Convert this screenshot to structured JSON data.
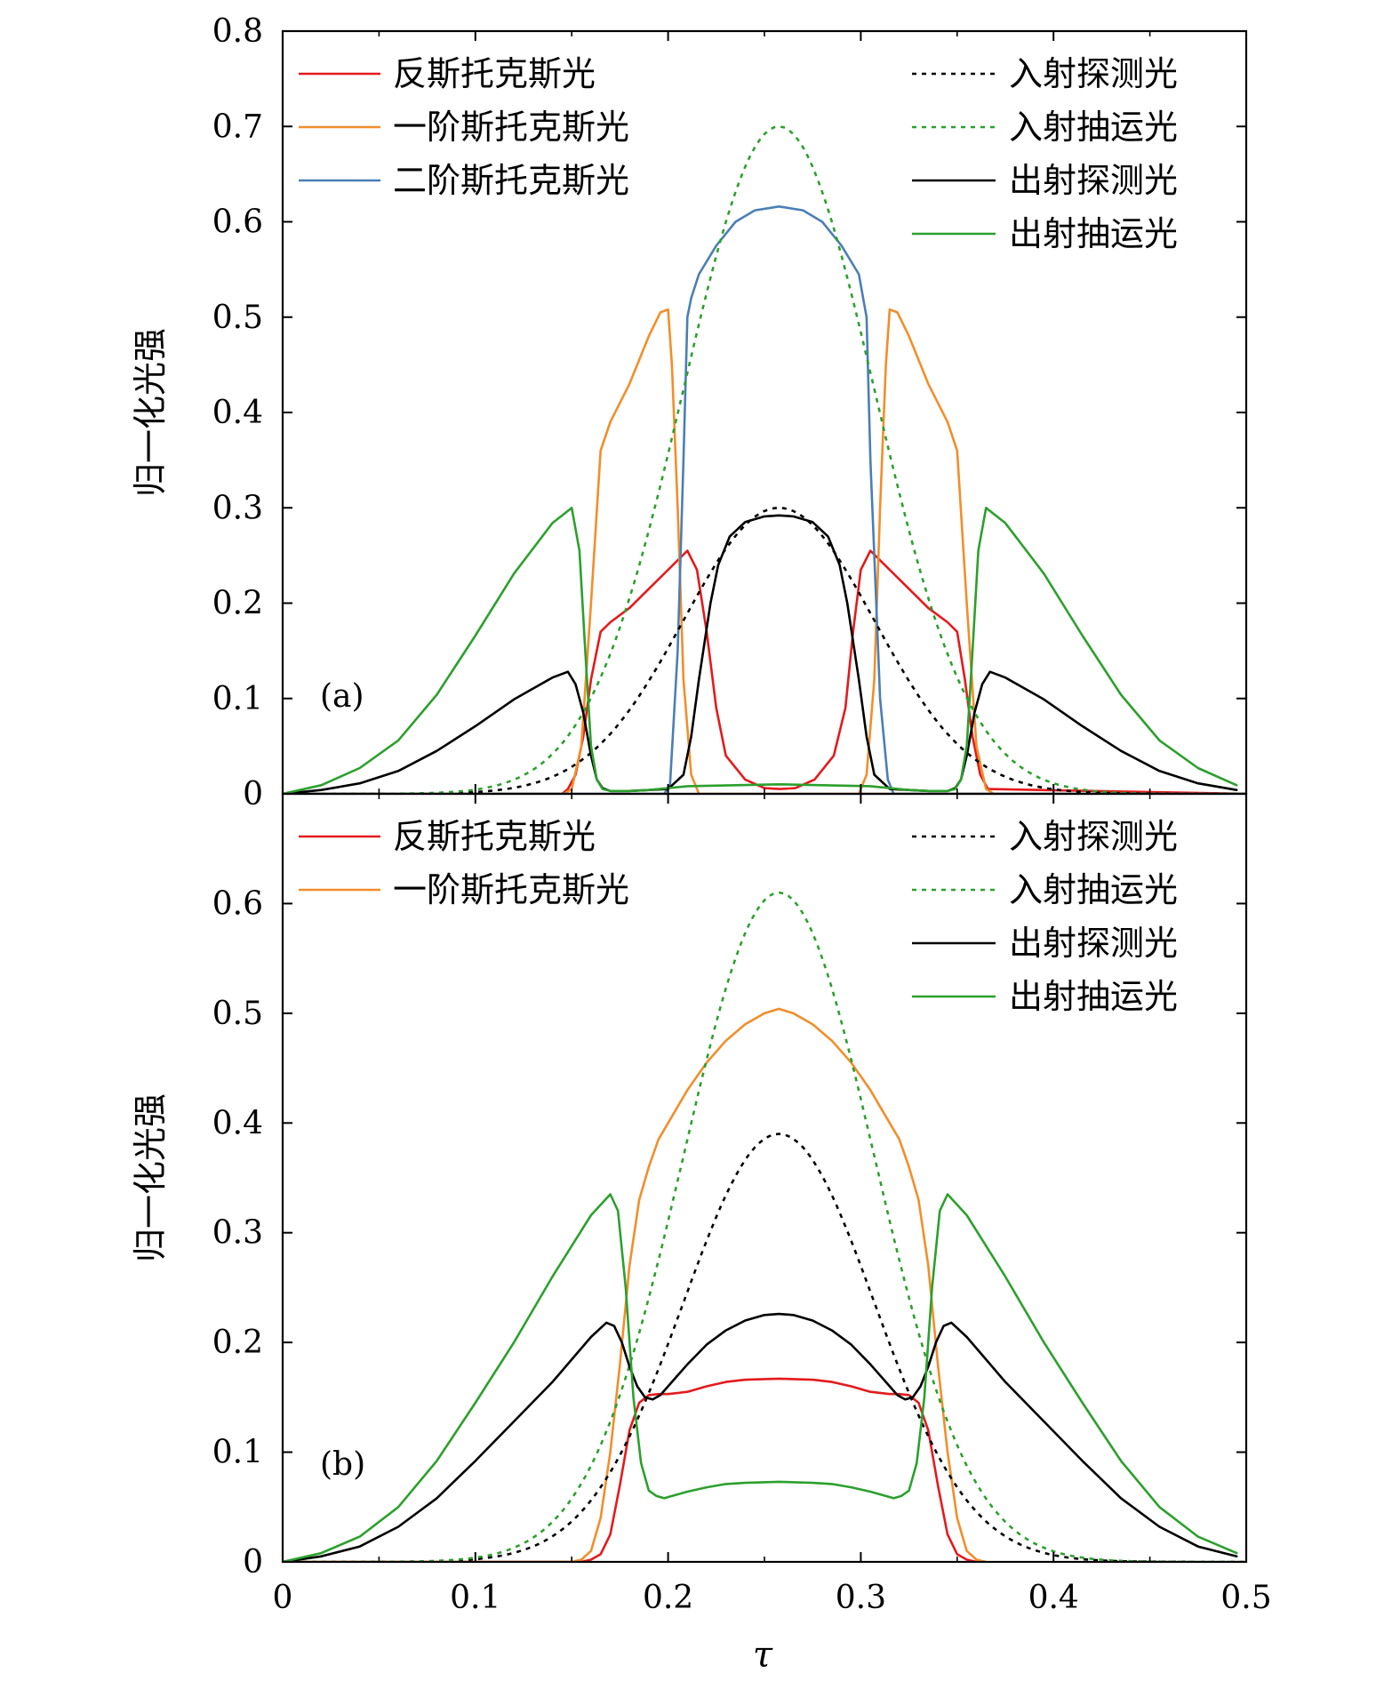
{
  "figure": {
    "xlabel": "τ",
    "x_ticks": [
      "0",
      "0.1",
      "0.2",
      "0.3",
      "0.4",
      "0.5"
    ]
  },
  "chart_data": [
    {
      "type": "line",
      "panel_label": "(a)",
      "ylabel": "归一化光强",
      "xlim": [
        0,
        0.5
      ],
      "ylim": [
        0,
        0.8
      ],
      "x_ticks": [
        0,
        0.1,
        0.2,
        0.3,
        0.4,
        0.5
      ],
      "y_ticks": [
        0,
        0.1,
        0.2,
        0.3,
        0.4,
        0.5,
        0.6,
        0.7,
        0.8
      ],
      "y_tick_labels": [
        "0",
        "0.1",
        "0.2",
        "0.3",
        "0.4",
        "0.5",
        "0.6",
        "0.7",
        "0.8"
      ],
      "legend_left": [
        "反斯托克斯光",
        "一阶斯托克斯光",
        "二阶斯托克斯光"
      ],
      "legend_right": [
        "入射探测光",
        "入射抽运光",
        "出射探测光",
        "出射抽运光"
      ],
      "series": [
        {
          "name": "反斯托克斯光",
          "color": "#e41a1c",
          "dash": "solid",
          "legend": "left",
          "x": [
            0,
            0.145,
            0.148,
            0.152,
            0.156,
            0.16,
            0.165,
            0.17,
            0.18,
            0.19,
            0.2,
            0.21,
            0.215,
            0.22,
            0.225,
            0.23,
            0.24,
            0.25,
            0.258,
            0.266,
            0.276,
            0.286,
            0.292,
            0.296,
            0.3,
            0.305,
            0.315,
            0.325,
            0.335,
            0.345,
            0.35,
            0.354,
            0.358,
            0.362,
            0.366,
            0.5
          ],
          "y": [
            0,
            0,
            0.005,
            0.02,
            0.06,
            0.12,
            0.17,
            0.18,
            0.195,
            0.215,
            0.235,
            0.255,
            0.235,
            0.17,
            0.09,
            0.04,
            0.015,
            0.006,
            0.005,
            0.006,
            0.015,
            0.04,
            0.09,
            0.17,
            0.235,
            0.255,
            0.235,
            0.215,
            0.195,
            0.18,
            0.17,
            0.12,
            0.06,
            0.02,
            0.005,
            0
          ]
        },
        {
          "name": "一阶斯托克斯光",
          "color": "#f28e2b",
          "dash": "solid",
          "legend": "left",
          "x": [
            0,
            0.146,
            0.15,
            0.155,
            0.16,
            0.165,
            0.17,
            0.18,
            0.19,
            0.196,
            0.2,
            0.202,
            0.205,
            0.208,
            0.212,
            0.216,
            0.5
          ],
          "y": [
            0,
            0,
            0.005,
            0.05,
            0.2,
            0.36,
            0.39,
            0.43,
            0.48,
            0.505,
            0.508,
            0.45,
            0.3,
            0.12,
            0.02,
            0,
            0
          ],
          "mirror": 0.2575
        },
        {
          "name": "二阶斯托克斯光",
          "color": "#4a7fb5",
          "dash": "solid",
          "legend": "left",
          "x": [
            0,
            0.198,
            0.201,
            0.205,
            0.208,
            0.21,
            0.212,
            0.216,
            0.225,
            0.235,
            0.245,
            0.2575,
            0.27,
            0.28,
            0.29,
            0.299,
            0.303,
            0.305,
            0.307,
            0.31,
            0.314,
            0.317,
            0.5
          ],
          "y": [
            0,
            0,
            0.01,
            0.15,
            0.35,
            0.5,
            0.52,
            0.545,
            0.575,
            0.6,
            0.612,
            0.616,
            0.612,
            0.6,
            0.575,
            0.545,
            0.5,
            0.35,
            0.25,
            0.1,
            0.015,
            0,
            0
          ]
        },
        {
          "name": "入射探测光",
          "color": "#000000",
          "dash": "dot",
          "legend": "right",
          "gauss": {
            "amp": 0.3,
            "center": 0.2575,
            "width": 0.07
          }
        },
        {
          "name": "入射抽运光",
          "color": "#2ca02c",
          "dash": "dot",
          "legend": "right",
          "gauss": {
            "amp": 0.7,
            "center": 0.2575,
            "width": 0.07
          }
        },
        {
          "name": "出射探测光",
          "color": "#000000",
          "dash": "solid",
          "legend": "right",
          "x": [
            0,
            0.02,
            0.04,
            0.06,
            0.08,
            0.1,
            0.12,
            0.14,
            0.148,
            0.152,
            0.156,
            0.16,
            0.163,
            0.166,
            0.17,
            0.18,
            0.19,
            0.2,
            0.208,
            0.212,
            0.216,
            0.222,
            0.226,
            0.232,
            0.24,
            0.25,
            0.2575
          ],
          "y": [
            0,
            0.004,
            0.011,
            0.024,
            0.045,
            0.071,
            0.099,
            0.122,
            0.128,
            0.115,
            0.085,
            0.04,
            0.015,
            0.006,
            0.003,
            0.003,
            0.004,
            0.005,
            0.02,
            0.06,
            0.12,
            0.2,
            0.24,
            0.27,
            0.285,
            0.291,
            0.292
          ],
          "mirror": 0.2575
        },
        {
          "name": "出射抽运光",
          "color": "#2ca02c",
          "dash": "solid",
          "legend": "right",
          "x": [
            0,
            0.02,
            0.04,
            0.06,
            0.08,
            0.1,
            0.12,
            0.14,
            0.15,
            0.154,
            0.157,
            0.16,
            0.163,
            0.166,
            0.17,
            0.18,
            0.19,
            0.2,
            0.21,
            0.2575
          ],
          "y": [
            0,
            0.009,
            0.027,
            0.056,
            0.104,
            0.166,
            0.231,
            0.284,
            0.3,
            0.255,
            0.15,
            0.05,
            0.015,
            0.005,
            0.003,
            0.003,
            0.004,
            0.006,
            0.008,
            0.01
          ],
          "mirror": 0.2575
        }
      ]
    },
    {
      "type": "line",
      "panel_label": "(b)",
      "ylabel": "归一化光强",
      "xlim": [
        0,
        0.5
      ],
      "ylim": [
        0,
        0.7
      ],
      "x_ticks": [
        0,
        0.1,
        0.2,
        0.3,
        0.4,
        0.5
      ],
      "y_ticks": [
        0,
        0.1,
        0.2,
        0.3,
        0.4,
        0.5,
        0.6
      ],
      "y_tick_labels": [
        "0",
        "0.1",
        "0.2",
        "0.3",
        "0.4",
        "0.5",
        "0.6"
      ],
      "legend_left": [
        "反斯托克斯光",
        "一阶斯托克斯光"
      ],
      "legend_right": [
        "入射探测光",
        "入射抽运光",
        "出射探测光",
        "出射抽运光"
      ],
      "series": [
        {
          "name": "反斯托克斯光",
          "color": "#e41a1c",
          "dash": "solid",
          "legend": "left",
          "x": [
            0,
            0.155,
            0.16,
            0.165,
            0.17,
            0.175,
            0.18,
            0.185,
            0.19,
            0.195,
            0.2,
            0.21,
            0.22,
            0.23,
            0.24,
            0.2575
          ],
          "y": [
            0,
            0,
            0.002,
            0.007,
            0.025,
            0.07,
            0.12,
            0.145,
            0.152,
            0.153,
            0.153,
            0.155,
            0.16,
            0.164,
            0.166,
            0.167
          ],
          "mirror": 0.2575
        },
        {
          "name": "一阶斯托克斯光",
          "color": "#f28e2b",
          "dash": "solid",
          "legend": "left",
          "x": [
            0,
            0.15,
            0.155,
            0.16,
            0.165,
            0.17,
            0.175,
            0.18,
            0.185,
            0.19,
            0.195,
            0.2,
            0.21,
            0.22,
            0.23,
            0.24,
            0.25,
            0.2575
          ],
          "y": [
            0,
            0,
            0.002,
            0.01,
            0.04,
            0.1,
            0.18,
            0.27,
            0.33,
            0.36,
            0.385,
            0.4,
            0.43,
            0.455,
            0.475,
            0.49,
            0.5,
            0.504
          ],
          "mirror": 0.2575
        },
        {
          "name": "入射探测光",
          "color": "#000000",
          "dash": "dot",
          "legend": "right",
          "gauss": {
            "amp": 0.39,
            "center": 0.2575,
            "width": 0.07
          }
        },
        {
          "name": "入射抽运光",
          "color": "#2ca02c",
          "dash": "dot",
          "legend": "right",
          "gauss": {
            "amp": 0.61,
            "center": 0.2575,
            "width": 0.07
          }
        },
        {
          "name": "出射探测光",
          "color": "#000000",
          "dash": "solid",
          "legend": "right",
          "x": [
            0,
            0.02,
            0.04,
            0.06,
            0.08,
            0.1,
            0.12,
            0.14,
            0.16,
            0.168,
            0.172,
            0.176,
            0.18,
            0.184,
            0.188,
            0.192,
            0.196,
            0.2,
            0.21,
            0.22,
            0.23,
            0.24,
            0.25,
            0.2575
          ],
          "y": [
            0,
            0.005,
            0.014,
            0.032,
            0.058,
            0.092,
            0.128,
            0.164,
            0.205,
            0.218,
            0.215,
            0.2,
            0.178,
            0.16,
            0.15,
            0.148,
            0.152,
            0.16,
            0.18,
            0.198,
            0.211,
            0.22,
            0.225,
            0.226
          ],
          "mirror": 0.2575
        },
        {
          "name": "出射抽运光",
          "color": "#2ca02c",
          "dash": "solid",
          "legend": "right",
          "x": [
            0,
            0.02,
            0.04,
            0.06,
            0.08,
            0.1,
            0.12,
            0.14,
            0.16,
            0.17,
            0.174,
            0.178,
            0.182,
            0.186,
            0.19,
            0.194,
            0.198,
            0.202,
            0.21,
            0.22,
            0.23,
            0.24,
            0.2575
          ],
          "y": [
            0,
            0.008,
            0.023,
            0.05,
            0.092,
            0.145,
            0.2,
            0.26,
            0.316,
            0.335,
            0.32,
            0.25,
            0.15,
            0.09,
            0.065,
            0.06,
            0.058,
            0.06,
            0.064,
            0.068,
            0.071,
            0.072,
            0.073
          ],
          "mirror": 0.2575
        }
      ]
    }
  ]
}
